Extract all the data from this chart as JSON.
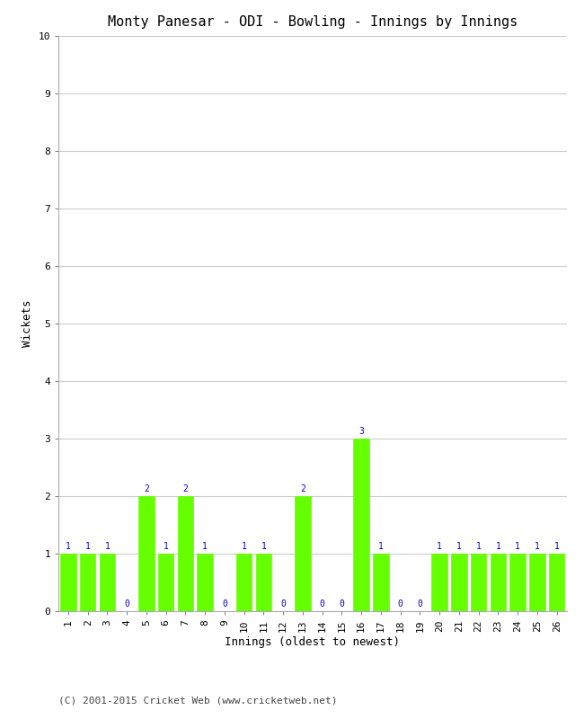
{
  "title": "Monty Panesar - ODI - Bowling - Innings by Innings",
  "xlabel": "Innings (oldest to newest)",
  "ylabel": "Wickets",
  "innings": [
    1,
    2,
    3,
    4,
    5,
    6,
    7,
    8,
    9,
    10,
    11,
    12,
    13,
    14,
    15,
    16,
    17,
    18,
    19,
    20,
    21,
    22,
    23,
    24,
    25,
    26
  ],
  "wickets": [
    1,
    1,
    1,
    0,
    2,
    1,
    2,
    1,
    0,
    1,
    1,
    0,
    2,
    0,
    0,
    3,
    1,
    0,
    0,
    1,
    1,
    1,
    1,
    1,
    1,
    1
  ],
  "bar_color": "#66ff00",
  "bar_edge_color": "#66ff00",
  "label_color": "#0000cc",
  "background_color": "#ffffff",
  "grid_color": "#cccccc",
  "ylim": [
    0,
    10
  ],
  "yticks": [
    0,
    1,
    2,
    3,
    4,
    5,
    6,
    7,
    8,
    9,
    10
  ],
  "title_fontsize": 11,
  "axis_label_fontsize": 9,
  "tick_fontsize": 8,
  "bar_label_fontsize": 7,
  "footer_text": "(C) 2001-2015 Cricket Web (www.cricketweb.net)",
  "footer_color": "#444444",
  "footer_fontsize": 8
}
